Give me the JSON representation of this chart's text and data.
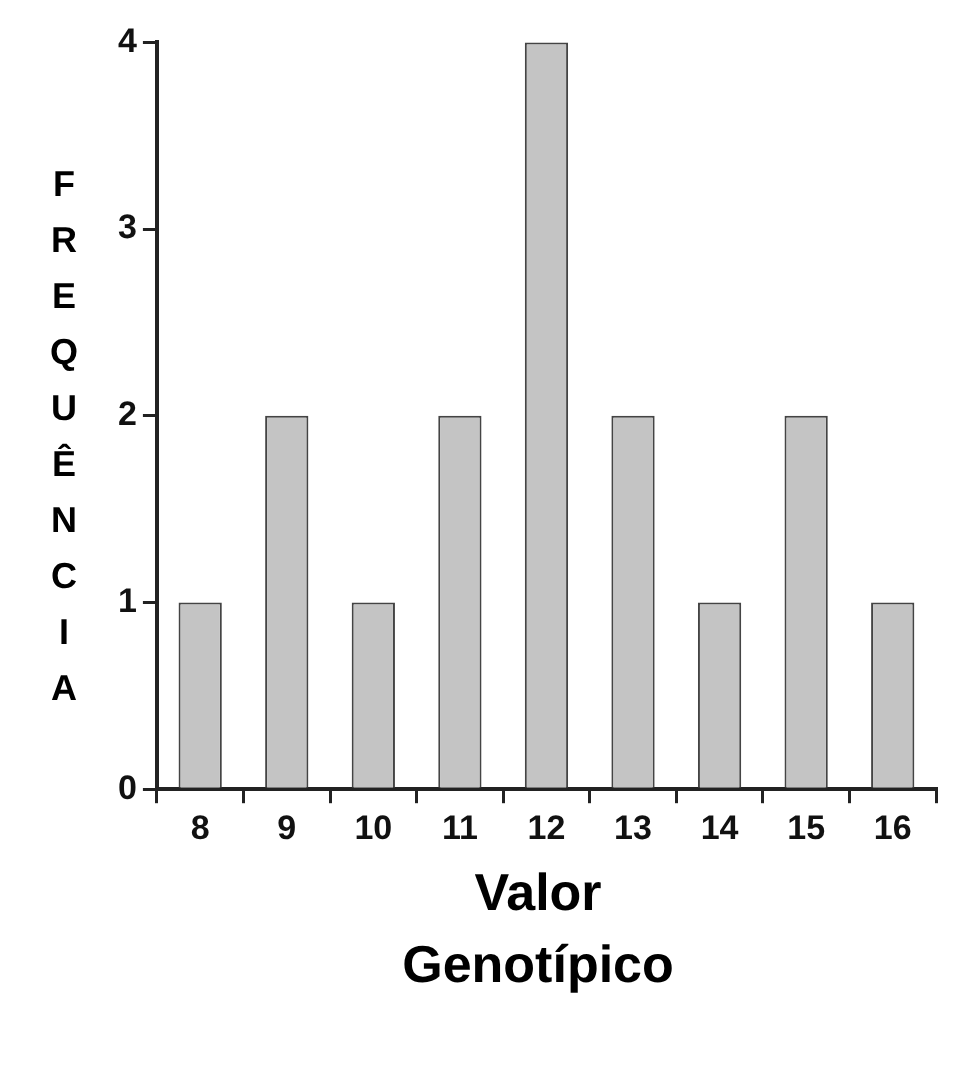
{
  "chart_data": {
    "type": "bar",
    "xlabel": "Valor Genotípico",
    "ylabel": "FREQUÊNCIA",
    "categories": [
      "8",
      "9",
      "10",
      "11",
      "12",
      "13",
      "14",
      "15",
      "16"
    ],
    "values": [
      1,
      2,
      1,
      2,
      4,
      2,
      1,
      2,
      1
    ],
    "color": "#c4c4c4",
    "ylim": [
      0,
      4
    ],
    "yticks": [
      0,
      1,
      2,
      3,
      4
    ],
    "grid": false,
    "legend": false
  }
}
